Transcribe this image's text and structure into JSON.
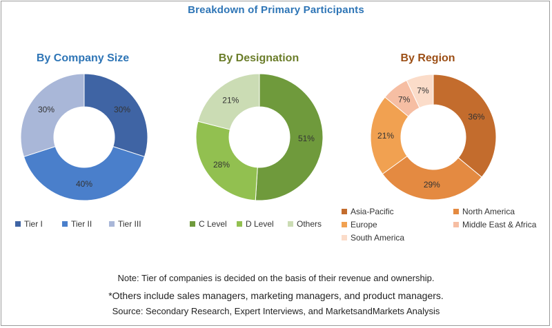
{
  "title": "Breakdown of Primary Participants",
  "chart_data": [
    {
      "type": "pie",
      "title": "By Company Size",
      "title_color": "#2e75b6",
      "categories": [
        "Tier I",
        "Tier II",
        "Tier III"
      ],
      "values": [
        30,
        40,
        30
      ],
      "labels": [
        "30%",
        "40%",
        "30%"
      ],
      "colors": [
        "#3f64a4",
        "#4a7fcb",
        "#a9b7d8"
      ],
      "legend_position": "bottom"
    },
    {
      "type": "pie",
      "title": "By Designation",
      "title_color": "#6b7d2a",
      "categories": [
        "C Level",
        "D Level",
        "Others"
      ],
      "values": [
        51,
        28,
        21
      ],
      "labels": [
        "51%",
        "28%",
        "21%"
      ],
      "colors": [
        "#6f9a3c",
        "#92c050",
        "#cbdcb4"
      ],
      "legend_position": "bottom"
    },
    {
      "type": "pie",
      "title": "By Region",
      "title_color": "#9c4f16",
      "categories": [
        "Asia-Pacific",
        "North America",
        "Europe",
        "Middle East & Africa",
        "South America"
      ],
      "values": [
        36,
        29,
        21,
        7,
        7
      ],
      "labels": [
        "36%",
        "29%",
        "21%",
        "7%",
        "7%"
      ],
      "colors": [
        "#c36c2d",
        "#e48a41",
        "#f1a151",
        "#f6bea3",
        "#fbdcc9"
      ],
      "legend_position": "bottom"
    }
  ],
  "notes": {
    "tier_note": "Note: Tier of companies is decided on the basis of their revenue and ownership.",
    "others_note": "*Others include sales managers, marketing managers, and product managers.",
    "source": "Source: Secondary Research, Expert Interviews, and MarketsandMarkets Analysis"
  }
}
